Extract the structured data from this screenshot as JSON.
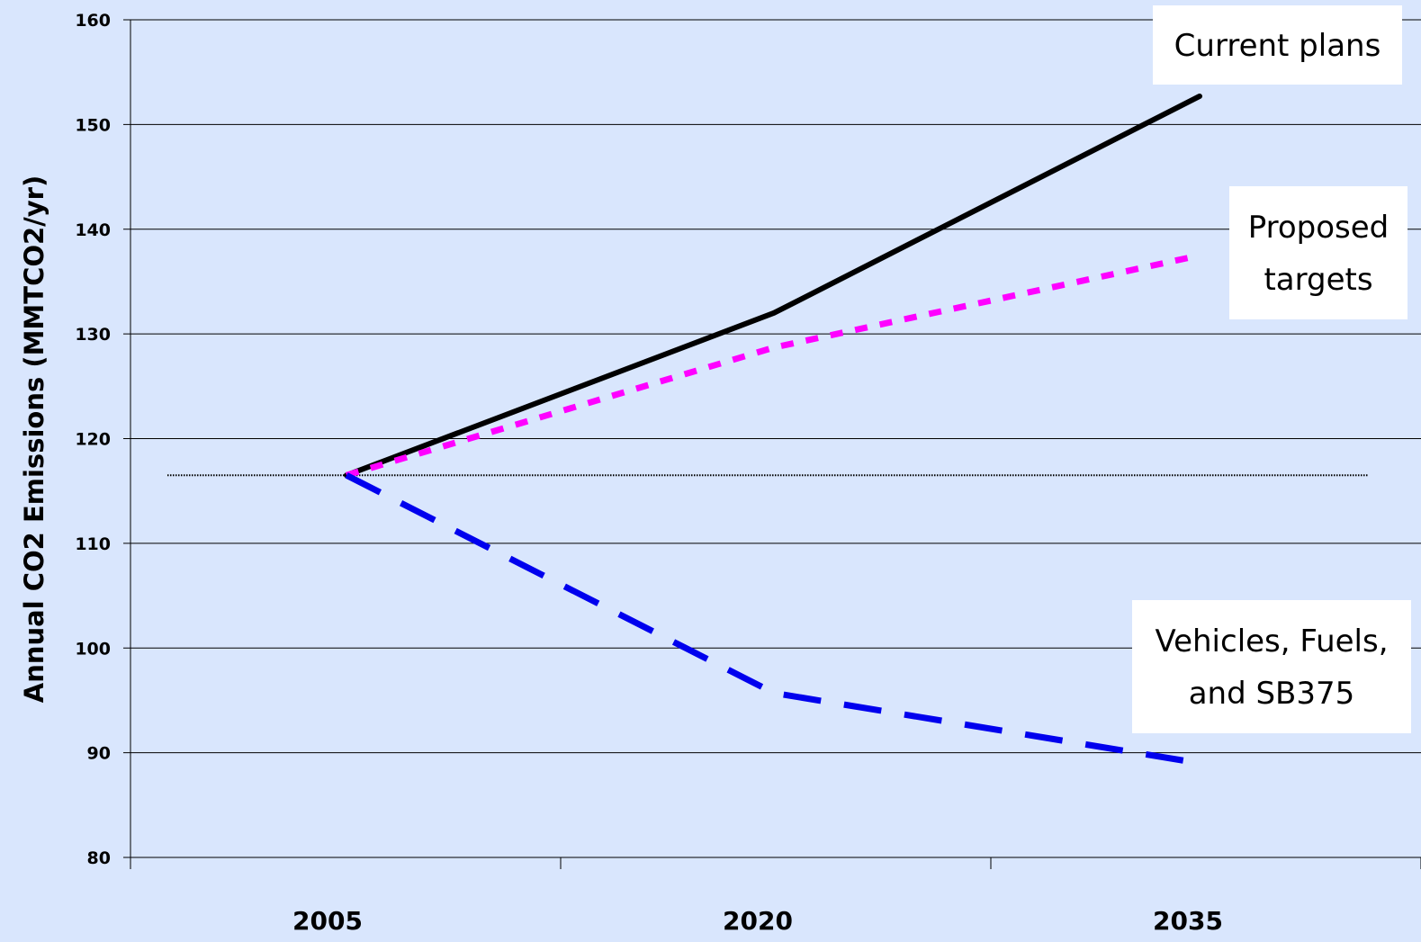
{
  "colors": {
    "background": "#d9e6fd",
    "current_plans": "#000000",
    "proposed_targets": "#ff00ff",
    "vehicles_fuels_sb375": "#0000ee",
    "baseline": "#000000",
    "callout_fill": "#ffffff"
  },
  "chart_data": {
    "type": "line",
    "title": "",
    "xlabel": "",
    "ylabel": "Annual CO2 Emissions (MMTCO2/yr)",
    "categories": [
      "2005",
      "2020",
      "2035"
    ],
    "y_ticks": [
      "80",
      "90",
      "100",
      "110",
      "120",
      "130",
      "140",
      "150",
      "160"
    ],
    "ylim": [
      80,
      160
    ],
    "grid": true,
    "series": [
      {
        "name": "Current plans",
        "lines": [
          "Current plans"
        ],
        "values": [
          116.5,
          132,
          152.7
        ],
        "style": "solid",
        "color": "#000000"
      },
      {
        "name": "Proposed targets",
        "lines": [
          "Proposed",
          "targets"
        ],
        "values": [
          116.5,
          128.7,
          137.5
        ],
        "style": "dotted",
        "color": "#ff00ff"
      },
      {
        "name": "Vehicles, Fuels, and SB375",
        "lines": [
          "Vehicles, Fuels,",
          "and SB375"
        ],
        "values": [
          116.5,
          95.7,
          89
        ],
        "style": "dashed",
        "color": "#0000ee"
      }
    ],
    "reference_line": {
      "value": 116.5,
      "style": "dotted",
      "color": "#000000"
    }
  }
}
